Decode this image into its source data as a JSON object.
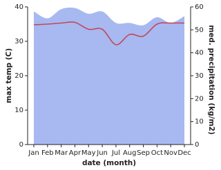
{
  "chart_data": {
    "type": "combo",
    "x_label": "date (month)",
    "y_label": "max temp (C)",
    "y2_label": "med. precipitation (kg/m2)",
    "categories": [
      "Jan",
      "Feb",
      "Mar",
      "Apr",
      "May",
      "Jun",
      "Jul",
      "Aug",
      "Sep",
      "Oct",
      "Nov",
      "Dec"
    ],
    "series": [
      {
        "type": "area",
        "axis": "y2",
        "color": "#a8b8f0",
        "values": [
          58,
          55,
          59,
          59.5,
          57,
          58,
          53,
          53,
          52,
          55.5,
          53,
          56
        ]
      },
      {
        "type": "line",
        "axis": "y",
        "color": "#c0485a",
        "values": [
          34.8,
          35,
          35.3,
          35.5,
          33.5,
          33.5,
          29,
          32,
          31.5,
          35,
          35.3,
          35.3
        ]
      }
    ],
    "ylim": [
      0,
      40
    ],
    "yticks": [
      0,
      10,
      20,
      30,
      40
    ],
    "y2lim": [
      0,
      60
    ],
    "y2ticks": [
      0,
      10,
      20,
      30,
      40,
      50,
      60
    ]
  }
}
